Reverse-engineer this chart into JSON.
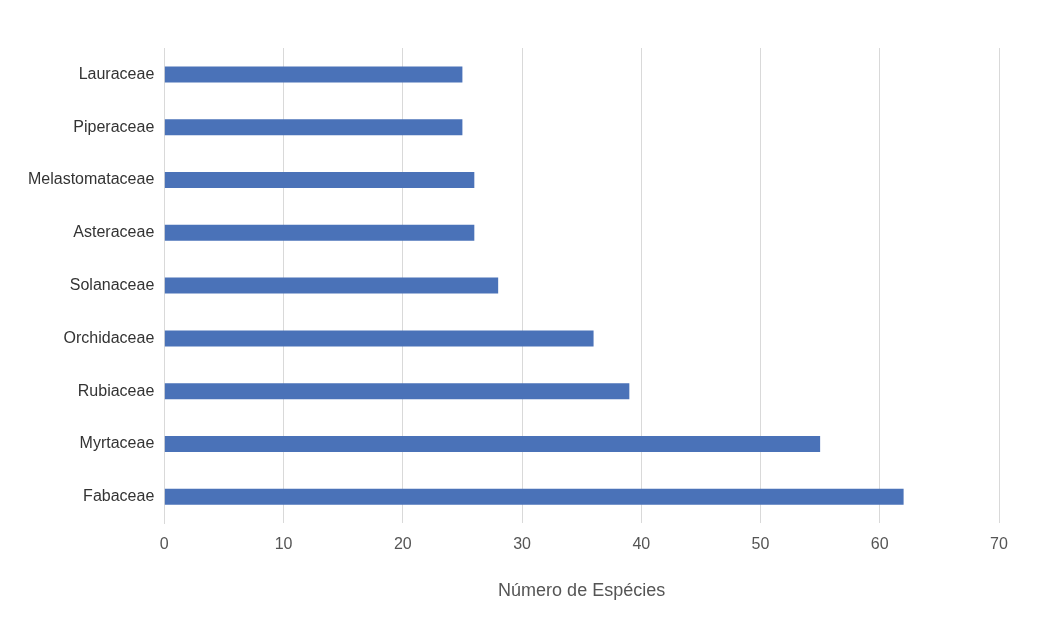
{
  "chart_data": {
    "type": "bar",
    "orientation": "horizontal",
    "xlabel": "Número de Espécies",
    "categories": [
      "Lauraceae",
      "Piperaceae",
      "Melastomataceae",
      "Asteraceae",
      "Solanaceae",
      "Orchidaceae",
      "Rubiaceae",
      "Myrtaceae",
      "Fabaceae"
    ],
    "values": [
      25,
      25,
      26,
      26,
      28,
      36,
      39,
      55,
      62
    ],
    "color": "#4a72b8",
    "xlim": [
      0,
      70
    ],
    "xticks": [
      0,
      10,
      20,
      30,
      40,
      50,
      60,
      70
    ],
    "grid": "x"
  }
}
